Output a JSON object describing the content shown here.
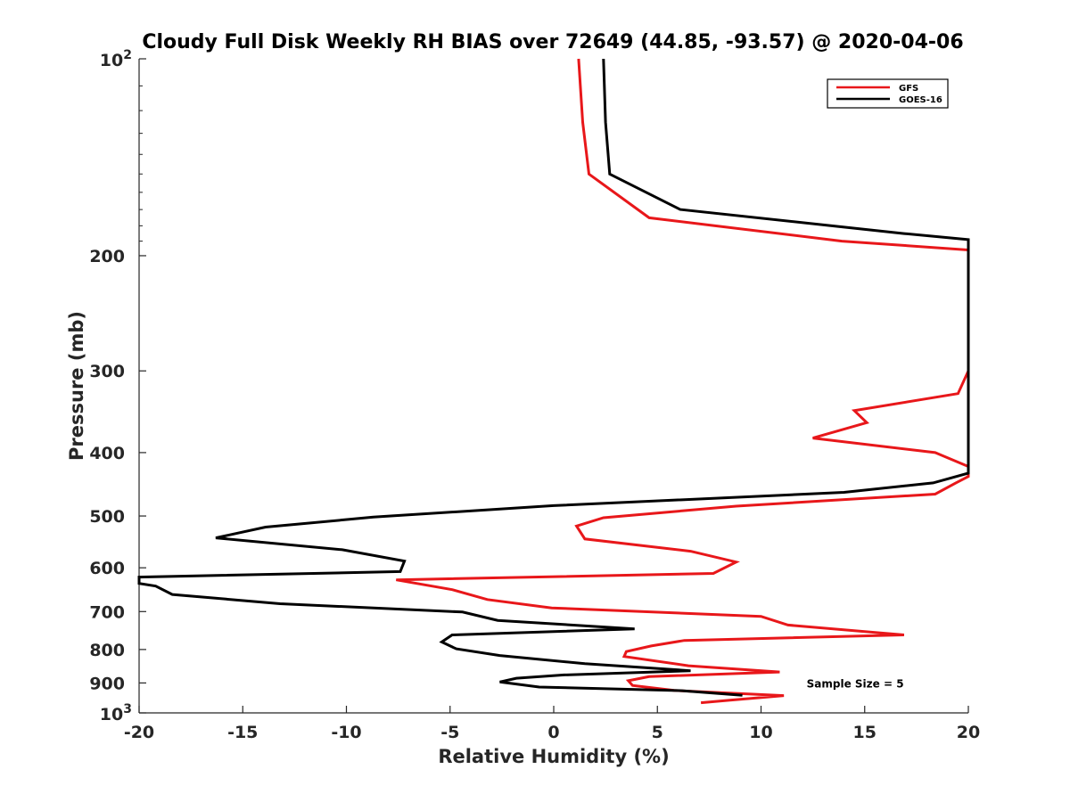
{
  "chart_data": {
    "type": "line",
    "title": "Cloudy Full Disk Weekly RH BIAS over 72649 (44.85, -93.57) @ 2020-04-06",
    "xlabel": "Relative Humidity (%)",
    "ylabel": "Pressure (mb)",
    "xlim": [
      -20,
      20
    ],
    "ylim": [
      100,
      1000
    ],
    "y_scale": "log",
    "y_reversed": true,
    "grid": false,
    "legend_position": "top-right",
    "x_ticks": [
      "-20",
      "-15",
      "-10",
      "-5",
      "0",
      "5",
      "10",
      "15",
      "20"
    ],
    "y_ticks": [
      {
        "value": 100,
        "base": "10",
        "exp": "2"
      },
      {
        "value": 200,
        "label": "200"
      },
      {
        "value": 300,
        "label": "300"
      },
      {
        "value": 400,
        "label": "400"
      },
      {
        "value": 500,
        "label": "500"
      },
      {
        "value": 600,
        "label": "600"
      },
      {
        "value": 700,
        "label": "700"
      },
      {
        "value": 800,
        "label": "800"
      },
      {
        "value": 900,
        "label": "900"
      },
      {
        "value": 1000,
        "base": "10",
        "exp": "3"
      }
    ],
    "series": [
      {
        "name": "GFS",
        "color": "#e8171a",
        "points": [
          [
            1.2,
            100
          ],
          [
            1.4,
            125
          ],
          [
            1.7,
            150
          ],
          [
            4.6,
            175
          ],
          [
            13.9,
            190
          ],
          [
            20,
            196
          ],
          [
            20,
            300
          ],
          [
            19.5,
            325
          ],
          [
            14.5,
            345
          ],
          [
            15.1,
            360
          ],
          [
            12.5,
            380
          ],
          [
            18.4,
            400
          ],
          [
            20,
            420
          ],
          [
            20,
            435
          ],
          [
            19.4,
            445
          ],
          [
            18.4,
            463
          ],
          [
            8.8,
            483
          ],
          [
            2.4,
            503
          ],
          [
            1.1,
            518
          ],
          [
            1.5,
            542
          ],
          [
            6.6,
            566
          ],
          [
            8.8,
            588
          ],
          [
            7.7,
            612
          ],
          [
            -7.6,
            626
          ],
          [
            -4.9,
            648
          ],
          [
            -3.2,
            671
          ],
          [
            -0.1,
            691
          ],
          [
            10.0,
            712
          ],
          [
            11.3,
            734
          ],
          [
            16.9,
            760
          ],
          [
            6.3,
            775
          ],
          [
            4.7,
            790
          ],
          [
            3.5,
            806
          ],
          [
            3.4,
            820
          ],
          [
            6.5,
            847
          ],
          [
            10.9,
            866
          ],
          [
            4.6,
            880
          ],
          [
            3.6,
            893
          ],
          [
            3.8,
            908
          ],
          [
            5.8,
            924
          ],
          [
            11.1,
            941
          ],
          [
            8.5,
            956
          ],
          [
            7.1,
            965
          ]
        ]
      },
      {
        "name": "GOES-16",
        "color": "#000000",
        "points": [
          [
            2.4,
            100
          ],
          [
            2.5,
            125
          ],
          [
            2.7,
            150
          ],
          [
            6.1,
            170
          ],
          [
            16.9,
            185
          ],
          [
            20,
            189
          ],
          [
            20,
            430
          ],
          [
            18.3,
            445
          ],
          [
            14.0,
            460
          ],
          [
            0.0,
            482
          ],
          [
            -8.7,
            502
          ],
          [
            -13.9,
            520
          ],
          [
            -16.3,
            540
          ],
          [
            -10.2,
            563
          ],
          [
            -7.2,
            586
          ],
          [
            -7.4,
            608
          ],
          [
            -20,
            620
          ],
          [
            -20,
            634
          ],
          [
            -19.2,
            640
          ],
          [
            -18.4,
            659
          ],
          [
            -13.2,
            681
          ],
          [
            -4.4,
            701
          ],
          [
            -2.7,
            722
          ],
          [
            3.9,
            744
          ],
          [
            -4.9,
            760
          ],
          [
            -5.4,
            779
          ],
          [
            -4.7,
            798
          ],
          [
            -2.6,
            817
          ],
          [
            1.5,
            841
          ],
          [
            6.6,
            862
          ],
          [
            0.5,
            875
          ],
          [
            -1.8,
            885
          ],
          [
            -2.6,
            897
          ],
          [
            -0.7,
            913
          ],
          [
            6.2,
            925
          ],
          [
            9.1,
            940
          ]
        ]
      }
    ],
    "annotations": [
      {
        "text": "Sample Size = 5",
        "x": 12.2,
        "y": 900
      }
    ]
  }
}
